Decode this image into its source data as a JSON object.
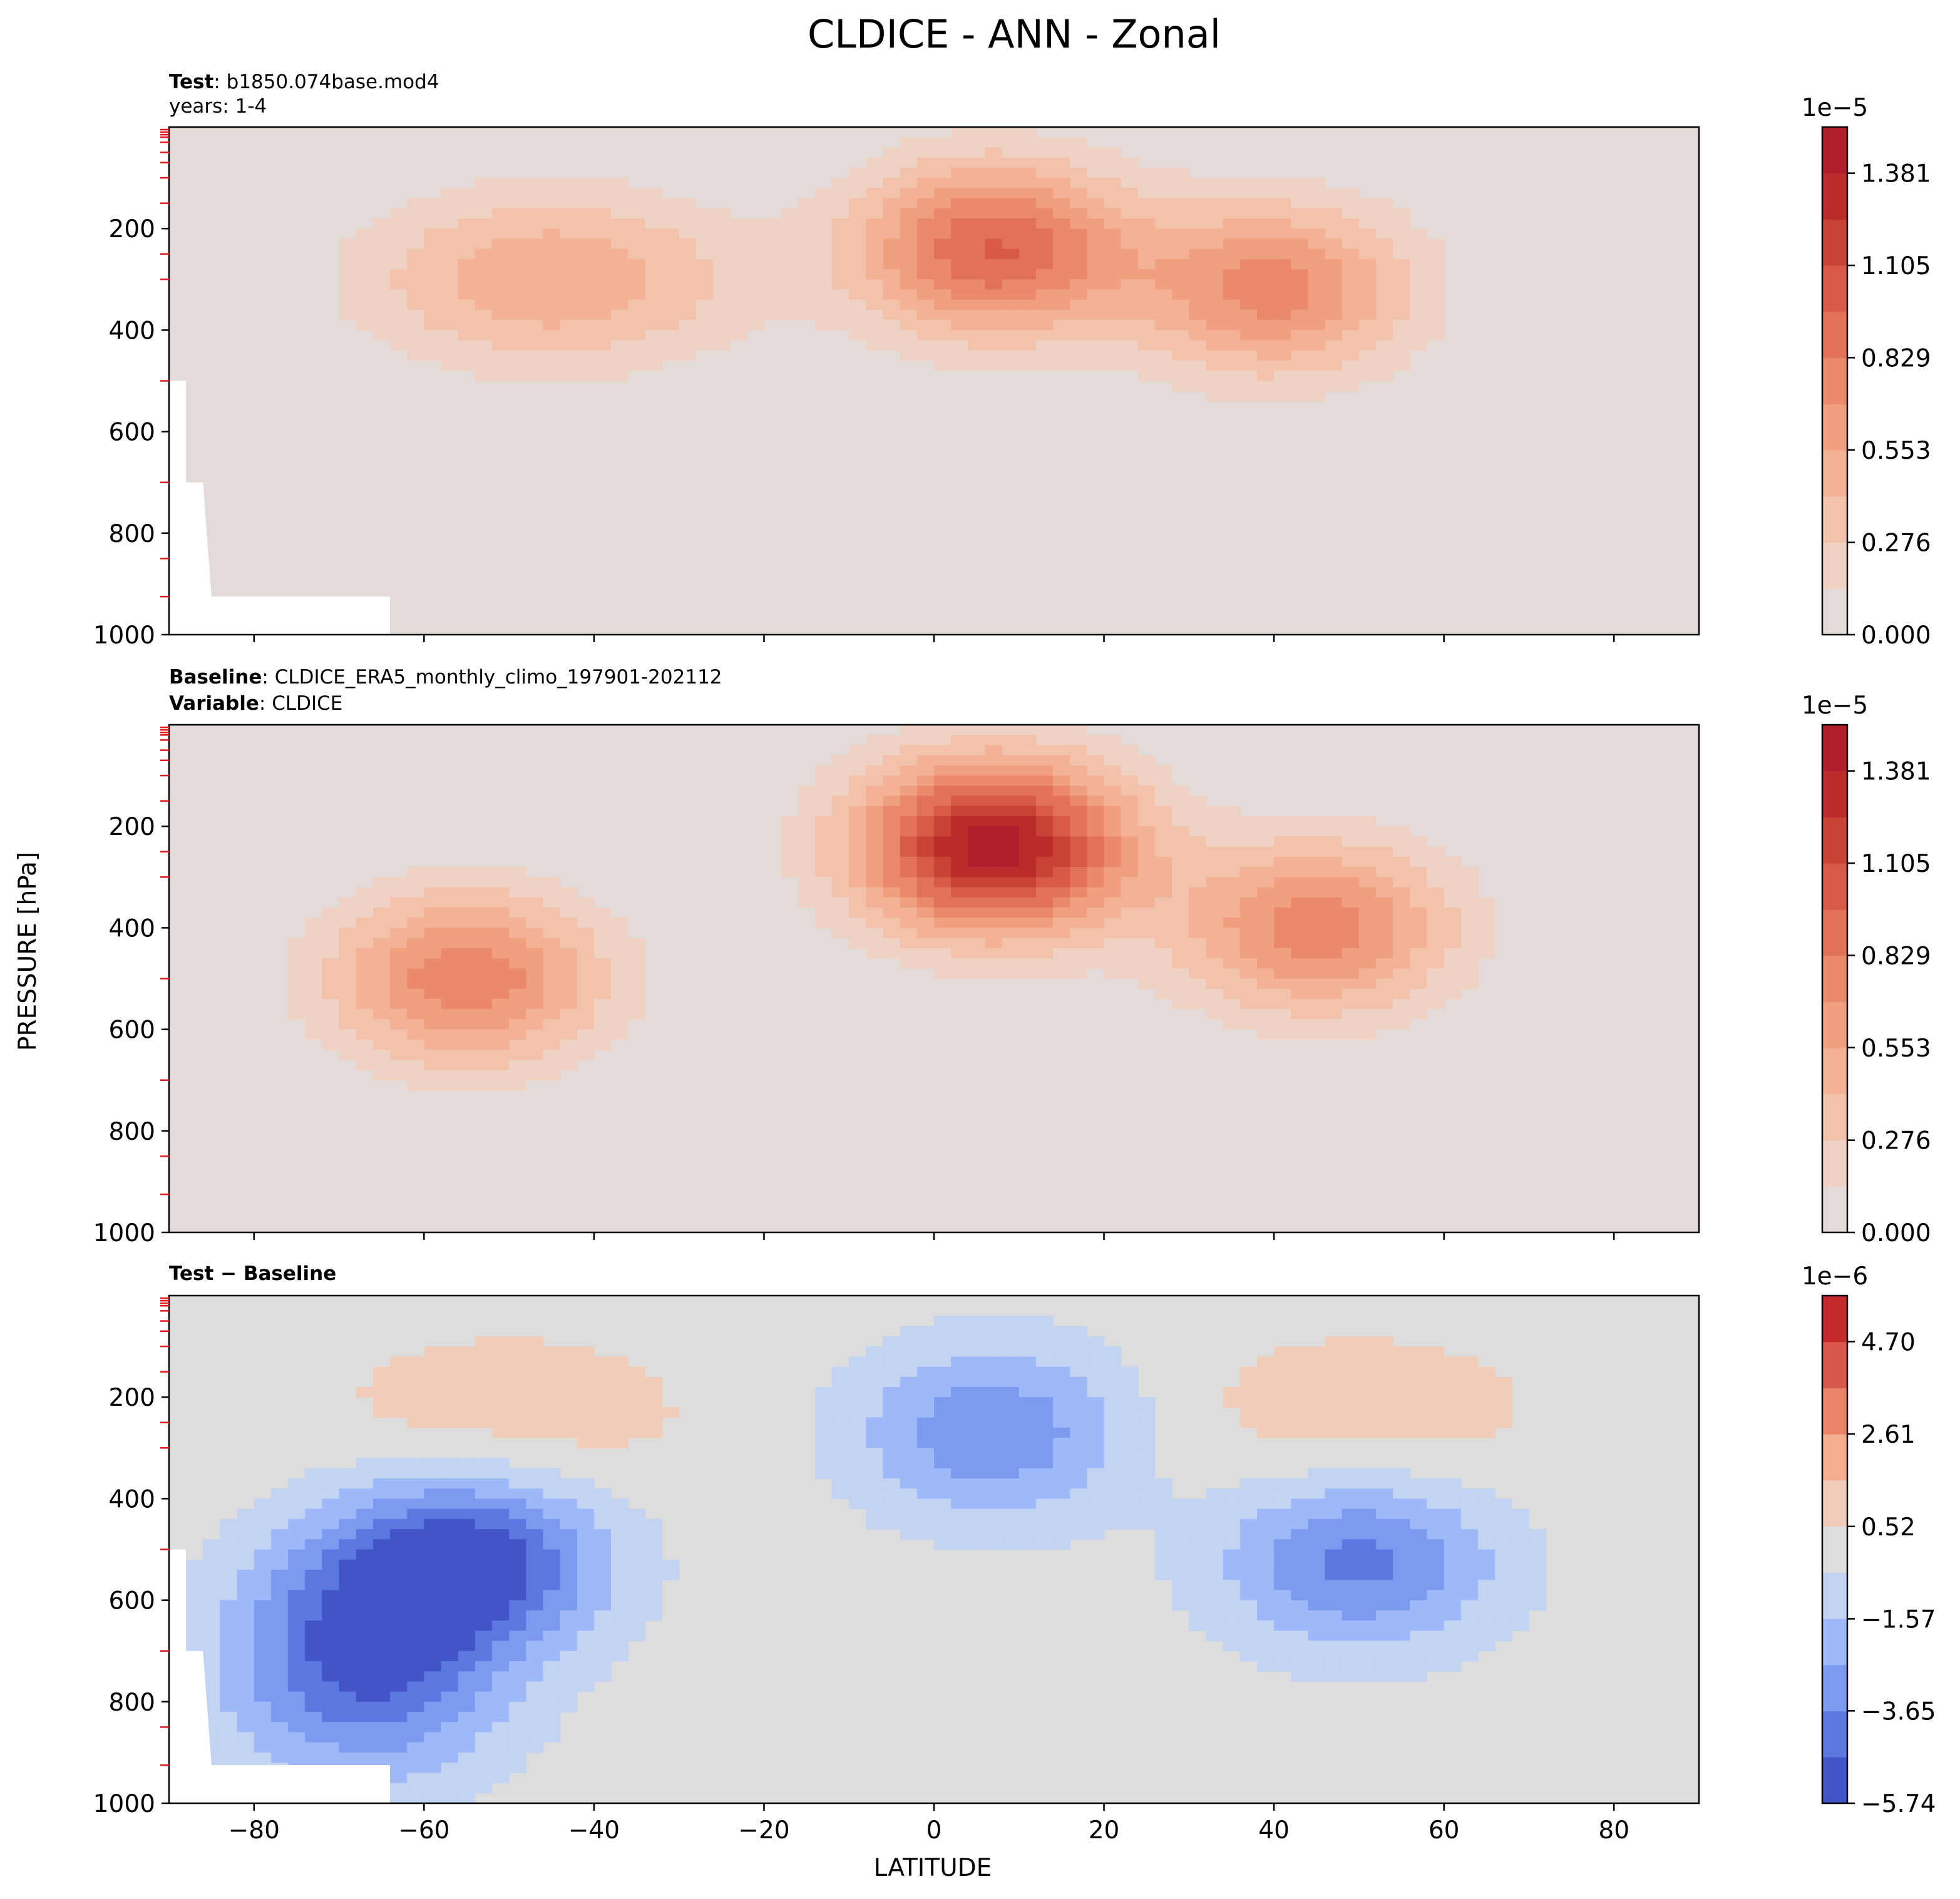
{
  "chart_data": {
    "type": "heatmap",
    "title": "CLDICE - ANN - Zonal",
    "xlabel": "LATITUDE",
    "ylabel": "PRESSURE [hPa]",
    "x_ticks": [
      "−80",
      "−60",
      "−40",
      "−20",
      "0",
      "20",
      "40",
      "60",
      "80"
    ],
    "y_ticks": [
      "200",
      "400",
      "600",
      "800",
      "1000"
    ],
    "xlim": [
      -90,
      90
    ],
    "ylim": [
      1000,
      0
    ],
    "panels": [
      {
        "id": "test",
        "header_line1_bold": "Test",
        "header_line1_text": "b1850.074base.mod4",
        "header_line2_text": "years: 1-4",
        "colorbar": {
          "colormap": "Reds",
          "scale": "1e−5",
          "ticks": [
            "1.381",
            "1.105",
            "0.829",
            "0.553",
            "0.276",
            "0.000"
          ],
          "vmin": 0.0,
          "vmax": 1.519,
          "levels": 11
        },
        "features": [
          {
            "desc": "upper tropical maximum",
            "lat": 7,
            "pressure_hPa": 240,
            "value": 0.97
          },
          {
            "desc": "southern mid-latitude band",
            "lat": -45,
            "pressure_hPa": 300,
            "value": 0.55
          },
          {
            "desc": "northern mid-latitude maximum",
            "lat": 40,
            "pressure_hPa": 320,
            "value": 0.75
          }
        ]
      },
      {
        "id": "baseline",
        "header_line1_bold": "Baseline",
        "header_line1_text": "CLDICE_ERA5_monthly_climo_197901-202112",
        "header_line2_bold": "Variable",
        "header_line2_text": "CLDICE",
        "colorbar": {
          "colormap": "Reds",
          "scale": "1e−5",
          "ticks": [
            "1.381",
            "1.105",
            "0.829",
            "0.553",
            "0.276",
            "0.000"
          ],
          "vmin": 0.0,
          "vmax": 1.519,
          "levels": 11
        },
        "features": [
          {
            "desc": "upper tropical maximum",
            "lat": 7,
            "pressure_hPa": 240,
            "value": 1.45
          },
          {
            "desc": "southern mid-latitude maximum",
            "lat": -55,
            "pressure_hPa": 500,
            "value": 0.8
          },
          {
            "desc": "northern mid-latitude maximum",
            "lat": 45,
            "pressure_hPa": 400,
            "value": 0.78
          }
        ]
      },
      {
        "id": "difference",
        "header_line1_bold": "Test − Baseline",
        "colorbar": {
          "colormap": "coolwarm",
          "scale": "1e−6",
          "ticks": [
            "4.70",
            "2.61",
            "0.52",
            "−1.57",
            "−3.65",
            "−5.74"
          ],
          "vmin": -5.74,
          "vmax": 5.74,
          "levels": 11
        },
        "features": [
          {
            "desc": "southern mid-latitude minimum",
            "lat": -55,
            "pressure_hPa": 520,
            "value": -5.2
          },
          {
            "desc": "southern deep minimum",
            "lat": -67,
            "pressure_hPa": 720,
            "value": -5.0
          },
          {
            "desc": "northern mid-latitude minimum",
            "lat": 50,
            "pressure_hPa": 520,
            "value": -4.0
          },
          {
            "desc": "tropical minimum",
            "lat": 7,
            "pressure_hPa": 270,
            "value": -3.5
          },
          {
            "desc": "upper-level positive band south",
            "lat": -50,
            "pressure_hPa": 240,
            "value": 1.2
          },
          {
            "desc": "upper-level positive band north",
            "lat": 50,
            "pressure_hPa": 240,
            "value": 1.2
          }
        ]
      }
    ]
  }
}
